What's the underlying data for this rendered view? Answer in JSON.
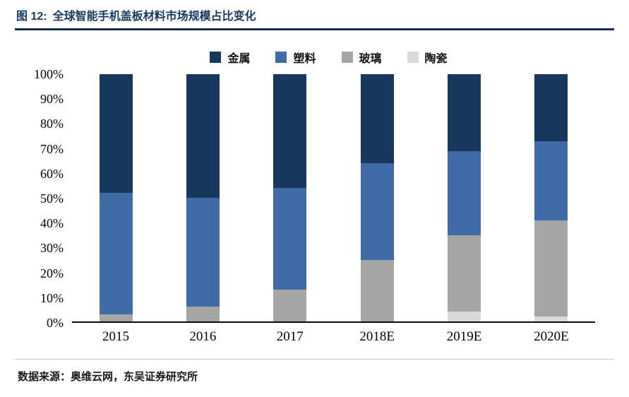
{
  "header": {
    "figure_label": "图 12:",
    "title": "全球智能手机盖板材料市场规模占比变化"
  },
  "footer": {
    "source": "数据来源：奥维云网，东吴证券研究所"
  },
  "colors": {
    "accent_navy": "#17375d",
    "metal": "#17375d",
    "plastic": "#3f6ca6",
    "glass": "#a6a6a6",
    "ceramic": "#d9d9d9",
    "axis_line": "#0a0a0a",
    "header_rule": "#122c52",
    "footer_rule": "#c3c3c3"
  },
  "chart_data": {
    "type": "bar",
    "stacked": true,
    "percent": true,
    "title": "全球智能手机盖板材料市场规模占比变化",
    "categories": [
      "2015",
      "2016",
      "2017",
      "2018E",
      "2019E",
      "2020E"
    ],
    "series": [
      {
        "name": "金属",
        "color": "#17375d",
        "values": [
          48,
          50,
          46,
          36,
          31,
          27
        ]
      },
      {
        "name": "塑料",
        "color": "#3f6ca6",
        "values": [
          49,
          44,
          41,
          39,
          34,
          32
        ]
      },
      {
        "name": "玻璃",
        "color": "#a6a6a6",
        "values": [
          3,
          6,
          13,
          25,
          31,
          39
        ]
      },
      {
        "name": "陶瓷",
        "color": "#d9d9d9",
        "values": [
          0,
          0,
          0,
          0,
          4,
          2
        ]
      }
    ],
    "stack_order_bottom_to_top": [
      "陶瓷",
      "玻璃",
      "塑料",
      "金属"
    ],
    "y_ticks": [
      "0%",
      "10%",
      "20%",
      "30%",
      "40%",
      "50%",
      "60%",
      "70%",
      "80%",
      "90%",
      "100%"
    ],
    "ylim": [
      0,
      100
    ],
    "legend_position": "top",
    "grid": false
  }
}
